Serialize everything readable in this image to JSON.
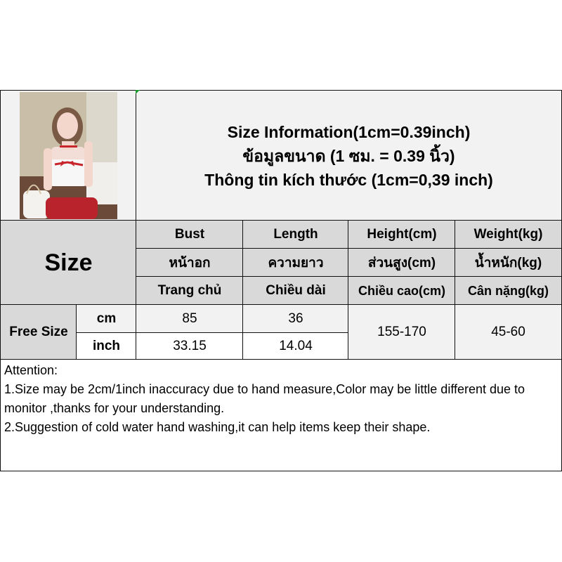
{
  "title": {
    "line1": "Size Information(1cm=0.39inch)",
    "line2": "ข้อมูลขนาด (1 ซม. = 0.39 นิ้ว)",
    "line3": "Thông tin kích thước (1cm=0,39 inch)"
  },
  "size_label": "Size",
  "columns": [
    {
      "en": "Bust",
      "th": "หน้าอก",
      "vi": "Trang chủ"
    },
    {
      "en": "Length",
      "th": "ความยาว",
      "vi": "Chiều dài"
    },
    {
      "en": "Height(cm)",
      "th": "ส่วนสูง(cm)",
      "vi": "Chiều cao(cm)"
    },
    {
      "en": "Weight(kg)",
      "th": "น้ำหนัก(kg)",
      "vi": "Cân nặng(kg)"
    }
  ],
  "row": {
    "size": "Free Size",
    "unit_cm": "cm",
    "unit_inch": "inch",
    "bust_cm": "85",
    "length_cm": "36",
    "bust_inch": "33.15",
    "length_inch": "14.04",
    "height": "155-170",
    "weight": "45-60"
  },
  "attention": {
    "heading": "Attention:",
    "note1": "1.Size may be 2cm/1inch inaccuracy due to hand measure,Color may be little different due to monitor ,thanks for your understanding.",
    "note2": "2.Suggestion of cold water hand washing,it can help items keep their shape."
  }
}
